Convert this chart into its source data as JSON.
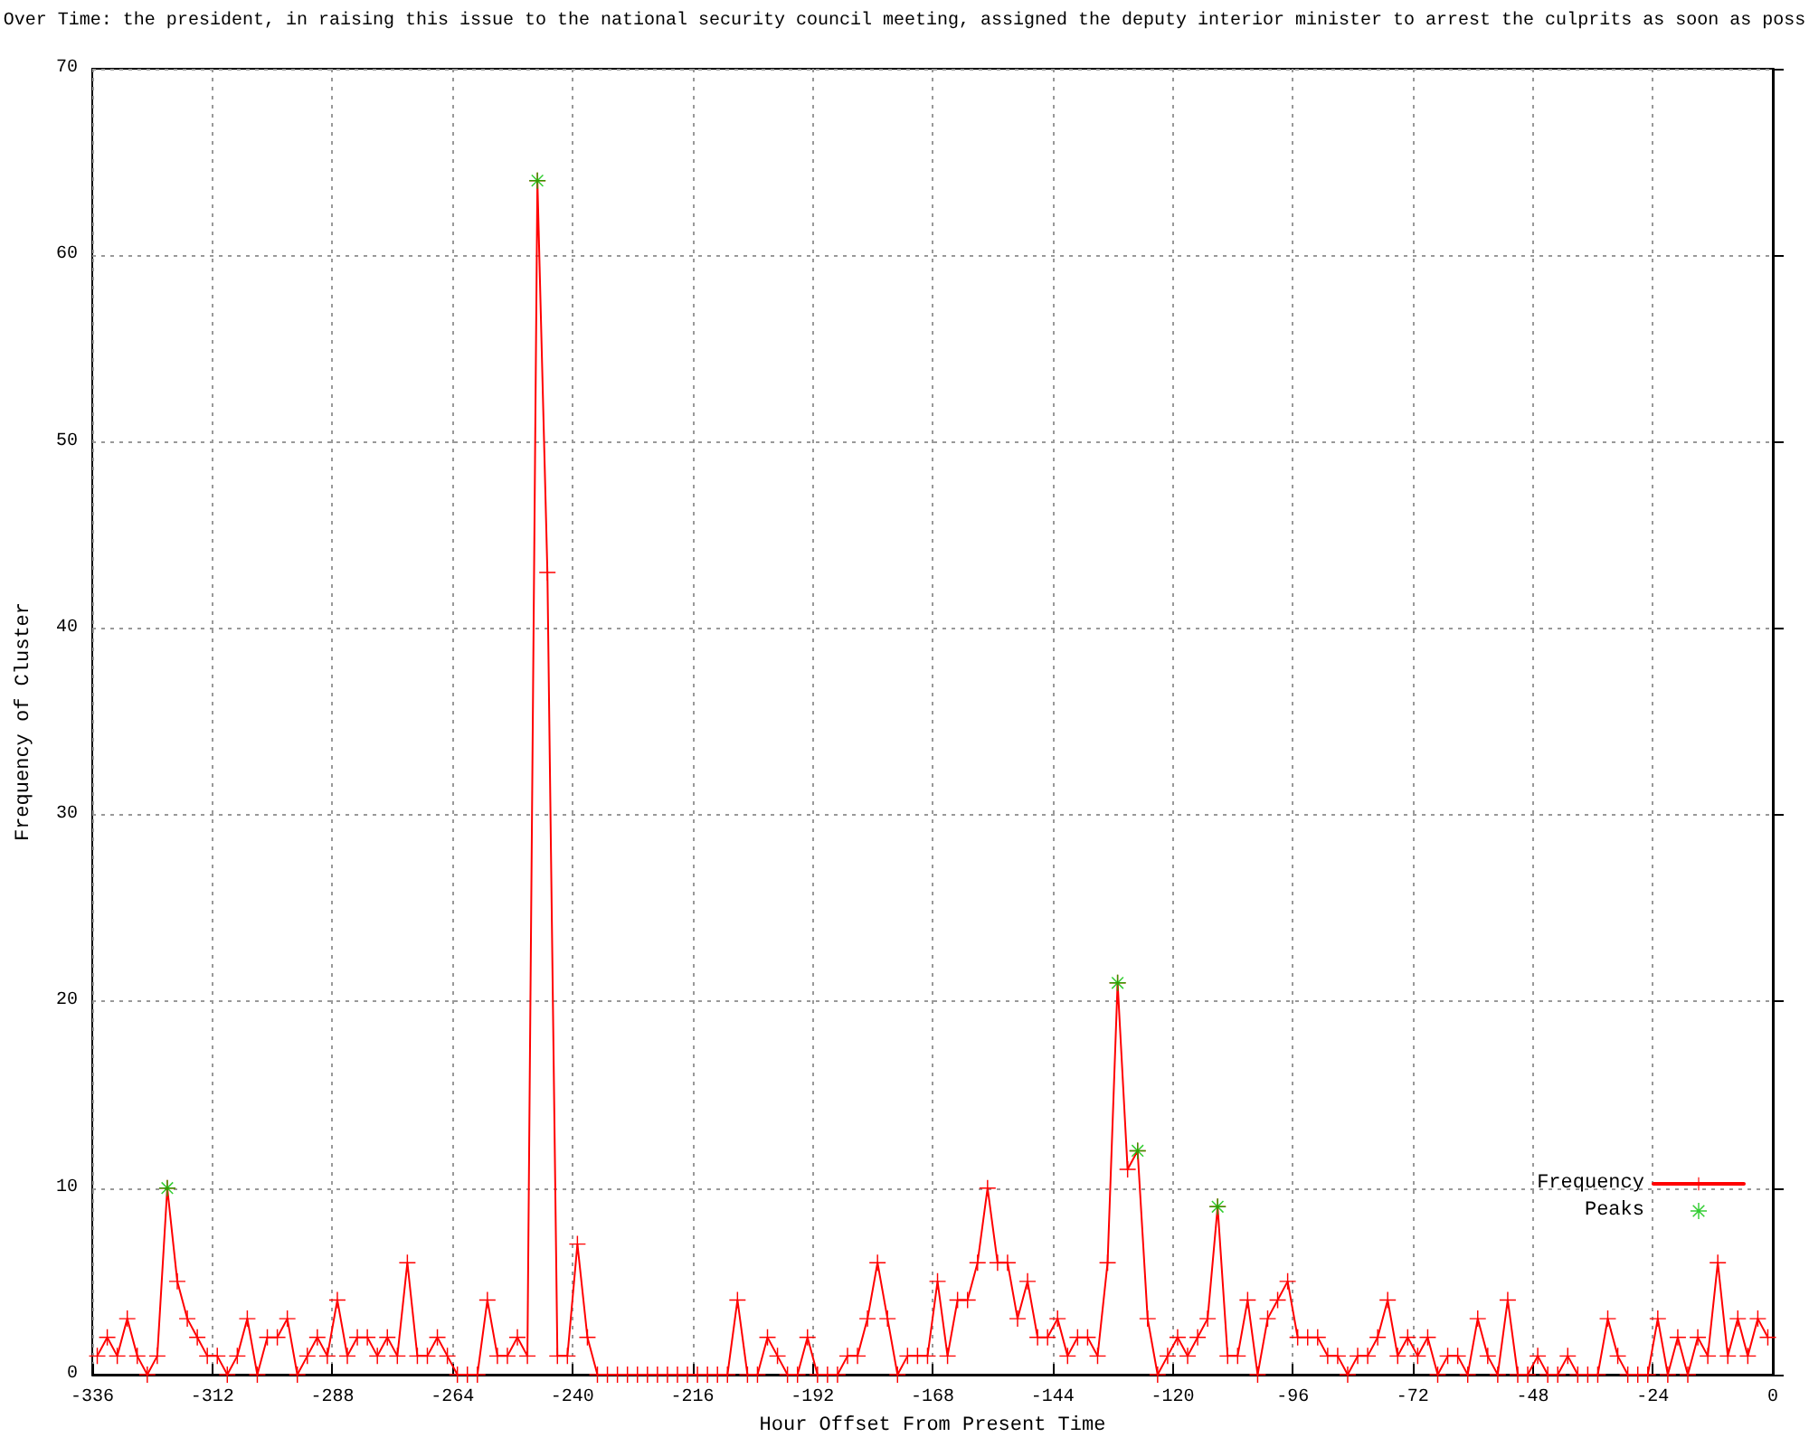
{
  "chart_data": {
    "type": "line",
    "title": "Over Time: the president, in raising this issue to the national security council meeting, assigned the deputy interior minister to arrest the culprits as soon as poss",
    "xlabel": "Hour Offset From Present Time",
    "ylabel": "Frequency of Cluster",
    "x": [
      -335,
      -333,
      -331,
      -329,
      -327,
      -325,
      -323,
      -321,
      -319,
      -317,
      -315,
      -313,
      -311,
      -309,
      -307,
      -305,
      -303,
      -301,
      -299,
      -297,
      -295,
      -293,
      -291,
      -289,
      -287,
      -285,
      -283,
      -281,
      -279,
      -277,
      -275,
      -273,
      -271,
      -269,
      -267,
      -265,
      -263,
      -261,
      -259,
      -257,
      -255,
      -253,
      -251,
      -249,
      -247,
      -245,
      -243,
      -241,
      -239,
      -237,
      -235,
      -233,
      -231,
      -229,
      -227,
      -225,
      -223,
      -221,
      -219,
      -217,
      -215,
      -213,
      -211,
      -209,
      -207,
      -205,
      -203,
      -201,
      -199,
      -197,
      -195,
      -193,
      -191,
      -189,
      -187,
      -185,
      -183,
      -181,
      -179,
      -177,
      -175,
      -173,
      -171,
      -169,
      -167,
      -165,
      -163,
      -161,
      -159,
      -157,
      -155,
      -153,
      -151,
      -149,
      -147,
      -145,
      -143,
      -141,
      -139,
      -137,
      -135,
      -133,
      -131,
      -129,
      -127,
      -125,
      -123,
      -121,
      -119,
      -117,
      -115,
      -113,
      -111,
      -109,
      -107,
      -105,
      -103,
      -101,
      -99,
      -97,
      -95,
      -93,
      -91,
      -89,
      -87,
      -85,
      -83,
      -81,
      -79,
      -77,
      -75,
      -73,
      -71,
      -69,
      -67,
      -65,
      -63,
      -61,
      -59,
      -57,
      -55,
      -53,
      -51,
      -49,
      -47,
      -45,
      -43,
      -41,
      -39,
      -37,
      -35,
      -33,
      -31,
      -29,
      -27,
      -25,
      -23,
      -21,
      -19,
      -17,
      -15,
      -13,
      -11,
      -9,
      -7,
      -5,
      -3,
      -1
    ],
    "series": [
      {
        "name": "Frequency",
        "color": "#ff0000",
        "marker": "cross",
        "values": [
          1,
          2,
          1,
          3,
          1,
          0,
          1,
          10,
          5,
          3,
          2,
          1,
          1,
          0,
          1,
          3,
          0,
          2,
          2,
          3,
          0,
          1,
          2,
          1,
          4,
          1,
          2,
          2,
          1,
          2,
          1,
          6,
          1,
          1,
          2,
          1,
          0,
          0,
          0,
          4,
          1,
          1,
          2,
          1,
          64,
          43,
          1,
          1,
          7,
          2,
          0,
          0,
          0,
          0,
          0,
          0,
          0,
          0,
          0,
          0,
          0,
          0,
          0,
          0,
          4,
          0,
          0,
          2,
          1,
          0,
          0,
          2,
          0,
          0,
          0,
          1,
          1,
          3,
          6,
          3,
          0,
          1,
          1,
          1,
          5,
          1,
          4,
          4,
          6,
          10,
          6,
          6,
          3,
          5,
          2,
          2,
          3,
          1,
          2,
          2,
          1,
          6,
          21,
          11,
          12,
          3,
          0,
          1,
          2,
          1,
          2,
          3,
          9,
          1,
          1,
          4,
          0,
          3,
          4,
          5,
          2,
          2,
          2,
          1,
          1,
          0,
          1,
          1,
          2,
          4,
          1,
          2,
          1,
          2,
          0,
          1,
          1,
          0,
          3,
          1,
          0,
          4,
          0,
          0,
          1,
          0,
          0,
          1,
          0,
          0,
          0,
          3,
          1,
          0,
          0,
          0,
          3,
          0,
          2,
          0,
          2,
          1,
          6,
          1,
          3,
          1,
          3,
          2
        ]
      },
      {
        "name": "Peaks",
        "type": "scatter",
        "color": "#00c000",
        "marker": "star",
        "x": [
          -321,
          -247,
          -131,
          -127,
          -111
        ],
        "values": [
          10,
          64,
          21,
          12,
          9
        ]
      }
    ],
    "xlim": [
      -336,
      0
    ],
    "xticks": [
      -336,
      -312,
      -288,
      -264,
      -240,
      -216,
      -192,
      -168,
      -144,
      -120,
      -96,
      -72,
      -48,
      -24,
      0
    ],
    "ylim": [
      0,
      70
    ],
    "yticks": [
      0,
      10,
      20,
      30,
      40,
      50,
      60,
      70
    ],
    "grid": true,
    "legend": "bottom right"
  }
}
